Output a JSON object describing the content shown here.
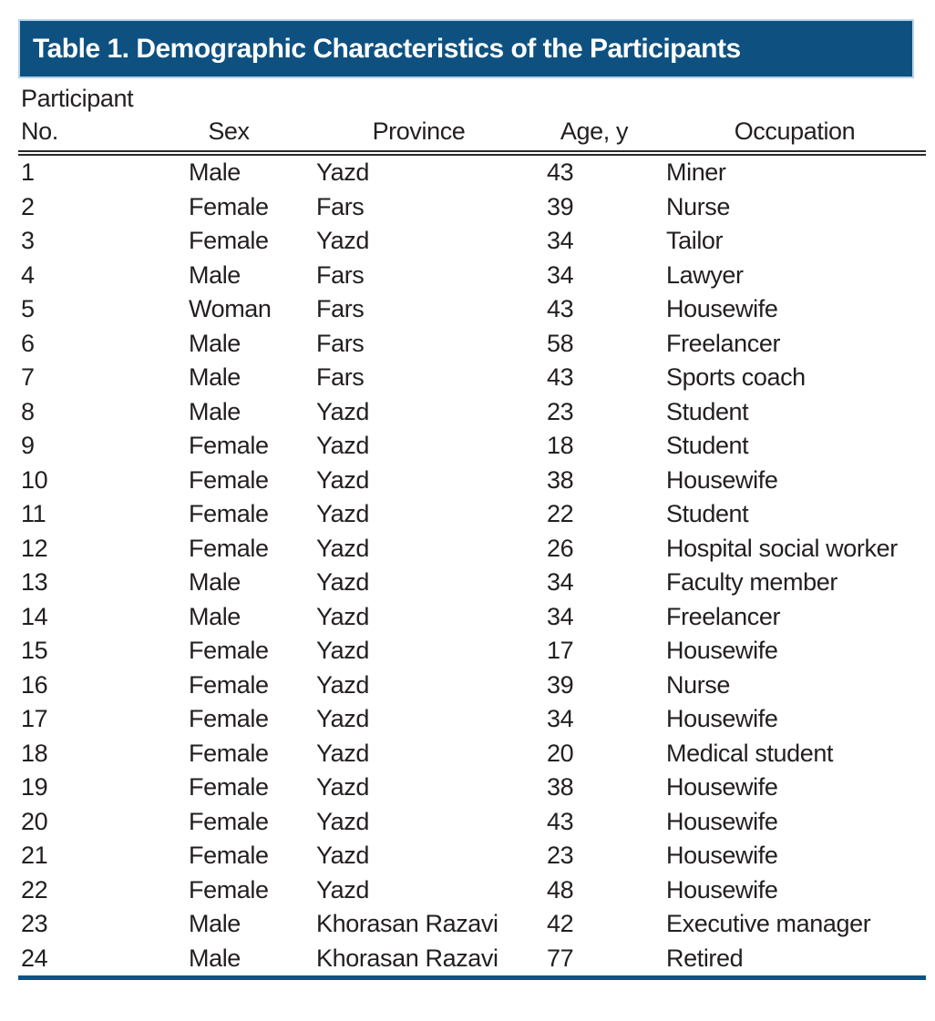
{
  "title_bar": {
    "label": "Table 1. Demographic Characteristics of the Participants"
  },
  "colors": {
    "title_bg": "#0e5180",
    "title_text": "#ffffff",
    "title_border": "#b8d4e9",
    "body_text": "#231f20",
    "header_rule": "#2a2a2a",
    "bottom_rule": "#10537f"
  },
  "table": {
    "columns": [
      {
        "id": "participant-no",
        "label_line1": "Participant",
        "label_line2": "No."
      },
      {
        "id": "sex",
        "label": "Sex"
      },
      {
        "id": "province",
        "label": "Province"
      },
      {
        "id": "age",
        "label": "Age, y"
      },
      {
        "id": "occupation",
        "label": "Occupation"
      }
    ],
    "rows": [
      [
        "1",
        "Male",
        "Yazd",
        "43",
        "Miner"
      ],
      [
        "2",
        "Female",
        "Fars",
        "39",
        "Nurse"
      ],
      [
        "3",
        "Female",
        "Yazd",
        "34",
        "Tailor"
      ],
      [
        "4",
        "Male",
        "Fars",
        "34",
        "Lawyer"
      ],
      [
        "5",
        "Woman",
        "Fars",
        "43",
        "Housewife"
      ],
      [
        "6",
        "Male",
        "Fars",
        "58",
        "Freelancer"
      ],
      [
        "7",
        "Male",
        "Fars",
        "43",
        "Sports coach"
      ],
      [
        "8",
        "Male",
        "Yazd",
        "23",
        "Student"
      ],
      [
        "9",
        "Female",
        "Yazd",
        "18",
        "Student"
      ],
      [
        "10",
        "Female",
        "Yazd",
        "38",
        "Housewife"
      ],
      [
        "11",
        "Female",
        "Yazd",
        "22",
        "Student"
      ],
      [
        "12",
        "Female",
        "Yazd",
        "26",
        "Hospital social worker"
      ],
      [
        "13",
        "Male",
        "Yazd",
        "34",
        "Faculty member"
      ],
      [
        "14",
        "Male",
        "Yazd",
        "34",
        "Freelancer"
      ],
      [
        "15",
        "Female",
        "Yazd",
        "17",
        "Housewife"
      ],
      [
        "16",
        "Female",
        "Yazd",
        "39",
        "Nurse"
      ],
      [
        "17",
        "Female",
        "Yazd",
        "34",
        "Housewife"
      ],
      [
        "18",
        "Female",
        "Yazd",
        "20",
        "Medical student"
      ],
      [
        "19",
        "Female",
        "Yazd",
        "38",
        "Housewife"
      ],
      [
        "20",
        "Female",
        "Yazd",
        "43",
        "Housewife"
      ],
      [
        "21",
        "Female",
        "Yazd",
        "23",
        "Housewife"
      ],
      [
        "22",
        "Female",
        "Yazd",
        "48",
        "Housewife"
      ],
      [
        "23",
        "Male",
        "Khorasan Razavi",
        "42",
        "Executive manager"
      ],
      [
        "24",
        "Male",
        "Khorasan Razavi",
        "77",
        "Retired"
      ]
    ]
  }
}
